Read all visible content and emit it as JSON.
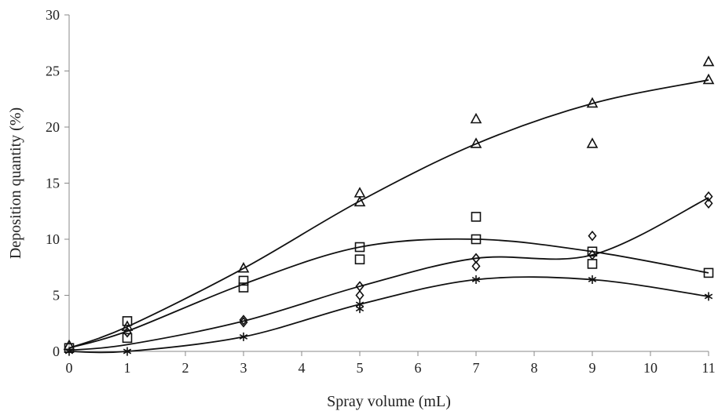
{
  "chart_data": {
    "type": "scatter",
    "xlabel": "Spray volume (mL)",
    "ylabel": "Deposition quantity (%)",
    "xlim": [
      0,
      11
    ],
    "ylim": [
      0,
      30
    ],
    "xticks": [
      0,
      1,
      2,
      3,
      4,
      5,
      6,
      7,
      8,
      9,
      10,
      11
    ],
    "yticks": [
      0,
      5,
      10,
      15,
      20,
      25,
      30
    ],
    "grid": false,
    "legend": "none",
    "trend_lines": [
      {
        "marker": "triangle",
        "x": [
          0,
          1,
          3,
          5,
          7,
          9,
          11
        ],
        "y": [
          0.3,
          2.2,
          7.4,
          13.4,
          18.5,
          22.1,
          24.2
        ]
      },
      {
        "marker": "square",
        "x": [
          0,
          1,
          3,
          5,
          7,
          9,
          11
        ],
        "y": [
          0.3,
          1.8,
          6.0,
          9.3,
          10.0,
          8.9,
          7.0
        ]
      },
      {
        "marker": "diamond",
        "x": [
          0,
          1,
          3,
          5,
          7,
          9,
          11
        ],
        "y": [
          0.1,
          0.6,
          2.7,
          5.8,
          8.3,
          8.6,
          13.7
        ]
      },
      {
        "marker": "star",
        "x": [
          0,
          1,
          3,
          5,
          7,
          9,
          11
        ],
        "y": [
          0.0,
          0.0,
          1.3,
          4.2,
          6.4,
          6.4,
          4.9
        ]
      }
    ],
    "points": [
      {
        "marker": "triangle",
        "x": [
          0,
          1,
          3,
          5,
          5,
          7,
          7,
          9,
          9,
          11,
          11
        ],
        "y": [
          0.5,
          2.2,
          7.4,
          14.1,
          13.3,
          20.7,
          18.5,
          22.1,
          18.5,
          25.8,
          24.2
        ]
      },
      {
        "marker": "square",
        "x": [
          0,
          1,
          1,
          3,
          3,
          5,
          5,
          7,
          7,
          9,
          9,
          11
        ],
        "y": [
          0.3,
          2.7,
          1.2,
          6.3,
          5.7,
          9.3,
          8.2,
          12.0,
          10.0,
          8.9,
          7.8,
          7.0
        ]
      },
      {
        "marker": "diamond",
        "x": [
          1,
          3,
          3,
          5,
          5,
          7,
          7,
          9,
          9,
          11,
          11
        ],
        "y": [
          1.7,
          2.8,
          2.6,
          5.0,
          5.8,
          7.6,
          8.3,
          10.3,
          8.6,
          13.2,
          13.8
        ]
      },
      {
        "marker": "star",
        "x": [
          0,
          1,
          3,
          5,
          5,
          7,
          9,
          11
        ],
        "y": [
          0.0,
          0.0,
          1.3,
          4.2,
          3.8,
          6.4,
          6.4,
          4.9
        ]
      }
    ]
  }
}
